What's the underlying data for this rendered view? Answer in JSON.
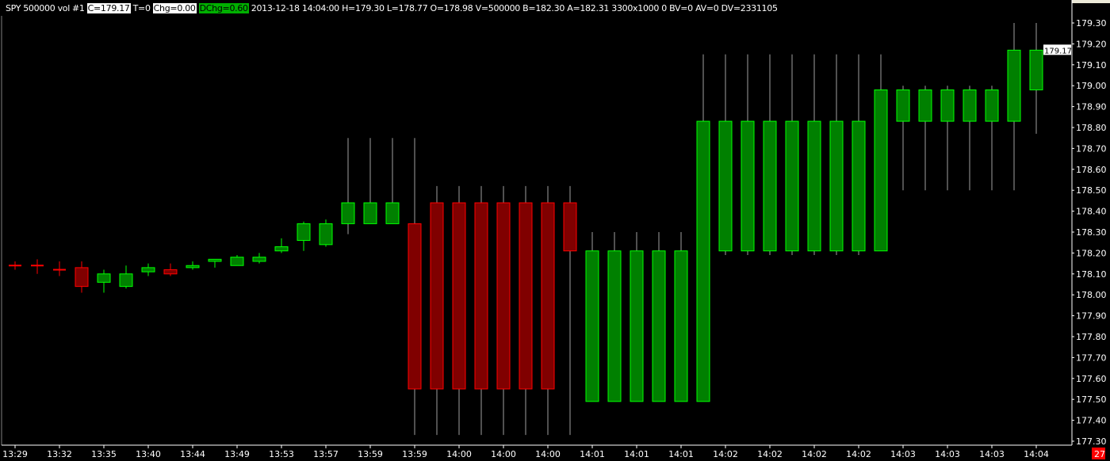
{
  "header": {
    "symbol": "SPY",
    "bar_type": "500000 vol",
    "chart_no": "#1",
    "close": "C=179.17",
    "t": "T=0",
    "chg": "Chg=0.00",
    "dchg": "DChg=0.60",
    "rest": "2013-12-18 14:04:00 H=179.30 L=178.77 O=178.98 V=500000 B=182.30 A=182.31 3300x1000 0 BV=0 AV=0 DV=2331105"
  },
  "last_price_label": "179.17",
  "corner_badge": "27",
  "colors": {
    "up_fill": "#008000",
    "up_border": "#00ff00",
    "down_fill": "#800000",
    "down_border": "#ff0000",
    "wick": "#a0a0a0",
    "background": "#000000",
    "axis": "#ffffff"
  },
  "chart_data": {
    "type": "candlestick",
    "ylim": [
      177.3,
      179.3
    ],
    "y_ticks": [
      "179.30",
      "179.20",
      "179.10",
      "179.00",
      "178.90",
      "178.80",
      "178.70",
      "178.60",
      "178.50",
      "178.40",
      "178.30",
      "178.20",
      "178.10",
      "178.00",
      "177.90",
      "177.80",
      "177.70",
      "177.60",
      "177.50",
      "177.40",
      "177.30"
    ],
    "x_tick_labels": [
      "13:29",
      "13:32",
      "13:35",
      "13:40",
      "13:44",
      "13:49",
      "13:53",
      "13:57",
      "13:59",
      "13:59",
      "14:00",
      "14:00",
      "14:00",
      "14:01",
      "14:01",
      "14:01",
      "14:02",
      "14:02",
      "14:02",
      "14:02",
      "14:03",
      "14:03",
      "14:03",
      "14:04"
    ],
    "grid": false,
    "candles": [
      {
        "o": 178.14,
        "h": 178.16,
        "l": 178.12,
        "c": 178.14
      },
      {
        "o": 178.14,
        "h": 178.17,
        "l": 178.1,
        "c": 178.14
      },
      {
        "o": 178.12,
        "h": 178.16,
        "l": 178.09,
        "c": 178.12
      },
      {
        "o": 178.13,
        "h": 178.16,
        "l": 178.01,
        "c": 178.04
      },
      {
        "o": 178.06,
        "h": 178.12,
        "l": 178.01,
        "c": 178.1
      },
      {
        "o": 178.04,
        "h": 178.14,
        "l": 178.03,
        "c": 178.1
      },
      {
        "o": 178.11,
        "h": 178.15,
        "l": 178.09,
        "c": 178.13
      },
      {
        "o": 178.12,
        "h": 178.15,
        "l": 178.09,
        "c": 178.1
      },
      {
        "o": 178.13,
        "h": 178.16,
        "l": 178.12,
        "c": 178.14
      },
      {
        "o": 178.16,
        "h": 178.17,
        "l": 178.13,
        "c": 178.17
      },
      {
        "o": 178.14,
        "h": 178.19,
        "l": 178.14,
        "c": 178.18
      },
      {
        "o": 178.16,
        "h": 178.2,
        "l": 178.15,
        "c": 178.18
      },
      {
        "o": 178.21,
        "h": 178.27,
        "l": 178.2,
        "c": 178.23
      },
      {
        "o": 178.26,
        "h": 178.35,
        "l": 178.21,
        "c": 178.34
      },
      {
        "o": 178.24,
        "h": 178.36,
        "l": 178.23,
        "c": 178.34
      },
      {
        "o": 178.34,
        "h": 178.75,
        "l": 178.29,
        "c": 178.44
      },
      {
        "o": 178.34,
        "h": 178.75,
        "l": 178.34,
        "c": 178.44
      },
      {
        "o": 178.34,
        "h": 178.75,
        "l": 178.34,
        "c": 178.44
      },
      {
        "o": 178.34,
        "h": 178.75,
        "l": 177.33,
        "c": 177.55
      },
      {
        "o": 178.44,
        "h": 178.52,
        "l": 177.33,
        "c": 177.55
      },
      {
        "o": 178.44,
        "h": 178.52,
        "l": 177.33,
        "c": 177.55
      },
      {
        "o": 178.44,
        "h": 178.52,
        "l": 177.33,
        "c": 177.55
      },
      {
        "o": 178.44,
        "h": 178.52,
        "l": 177.33,
        "c": 177.55
      },
      {
        "o": 178.44,
        "h": 178.52,
        "l": 177.33,
        "c": 177.55
      },
      {
        "o": 178.44,
        "h": 178.52,
        "l": 177.33,
        "c": 177.55
      },
      {
        "o": 178.44,
        "h": 178.52,
        "l": 177.33,
        "c": 178.21
      },
      {
        "o": 177.49,
        "h": 178.3,
        "l": 177.49,
        "c": 178.21
      },
      {
        "o": 177.49,
        "h": 178.3,
        "l": 177.49,
        "c": 178.21
      },
      {
        "o": 177.49,
        "h": 178.3,
        "l": 177.49,
        "c": 178.21
      },
      {
        "o": 177.49,
        "h": 178.3,
        "l": 177.49,
        "c": 178.21
      },
      {
        "o": 177.49,
        "h": 178.3,
        "l": 177.49,
        "c": 178.21
      },
      {
        "o": 177.49,
        "h": 179.15,
        "l": 177.49,
        "c": 178.83
      },
      {
        "o": 178.21,
        "h": 179.15,
        "l": 178.19,
        "c": 178.83
      },
      {
        "o": 178.21,
        "h": 179.15,
        "l": 178.19,
        "c": 178.83
      },
      {
        "o": 178.21,
        "h": 179.15,
        "l": 178.19,
        "c": 178.83
      },
      {
        "o": 178.21,
        "h": 179.15,
        "l": 178.19,
        "c": 178.83
      },
      {
        "o": 178.21,
        "h": 179.15,
        "l": 178.19,
        "c": 178.83
      },
      {
        "o": 178.21,
        "h": 179.15,
        "l": 178.19,
        "c": 178.83
      },
      {
        "o": 178.21,
        "h": 179.15,
        "l": 178.19,
        "c": 178.83
      },
      {
        "o": 178.21,
        "h": 179.15,
        "l": 178.21,
        "c": 178.98
      },
      {
        "o": 178.83,
        "h": 179.0,
        "l": 178.5,
        "c": 178.98
      },
      {
        "o": 178.83,
        "h": 179.0,
        "l": 178.5,
        "c": 178.98
      },
      {
        "o": 178.83,
        "h": 179.0,
        "l": 178.5,
        "c": 178.98
      },
      {
        "o": 178.83,
        "h": 179.0,
        "l": 178.5,
        "c": 178.98
      },
      {
        "o": 178.83,
        "h": 179.0,
        "l": 178.5,
        "c": 178.98
      },
      {
        "o": 178.83,
        "h": 179.3,
        "l": 178.5,
        "c": 179.17
      },
      {
        "o": 178.98,
        "h": 179.3,
        "l": 178.77,
        "c": 179.17
      }
    ]
  }
}
